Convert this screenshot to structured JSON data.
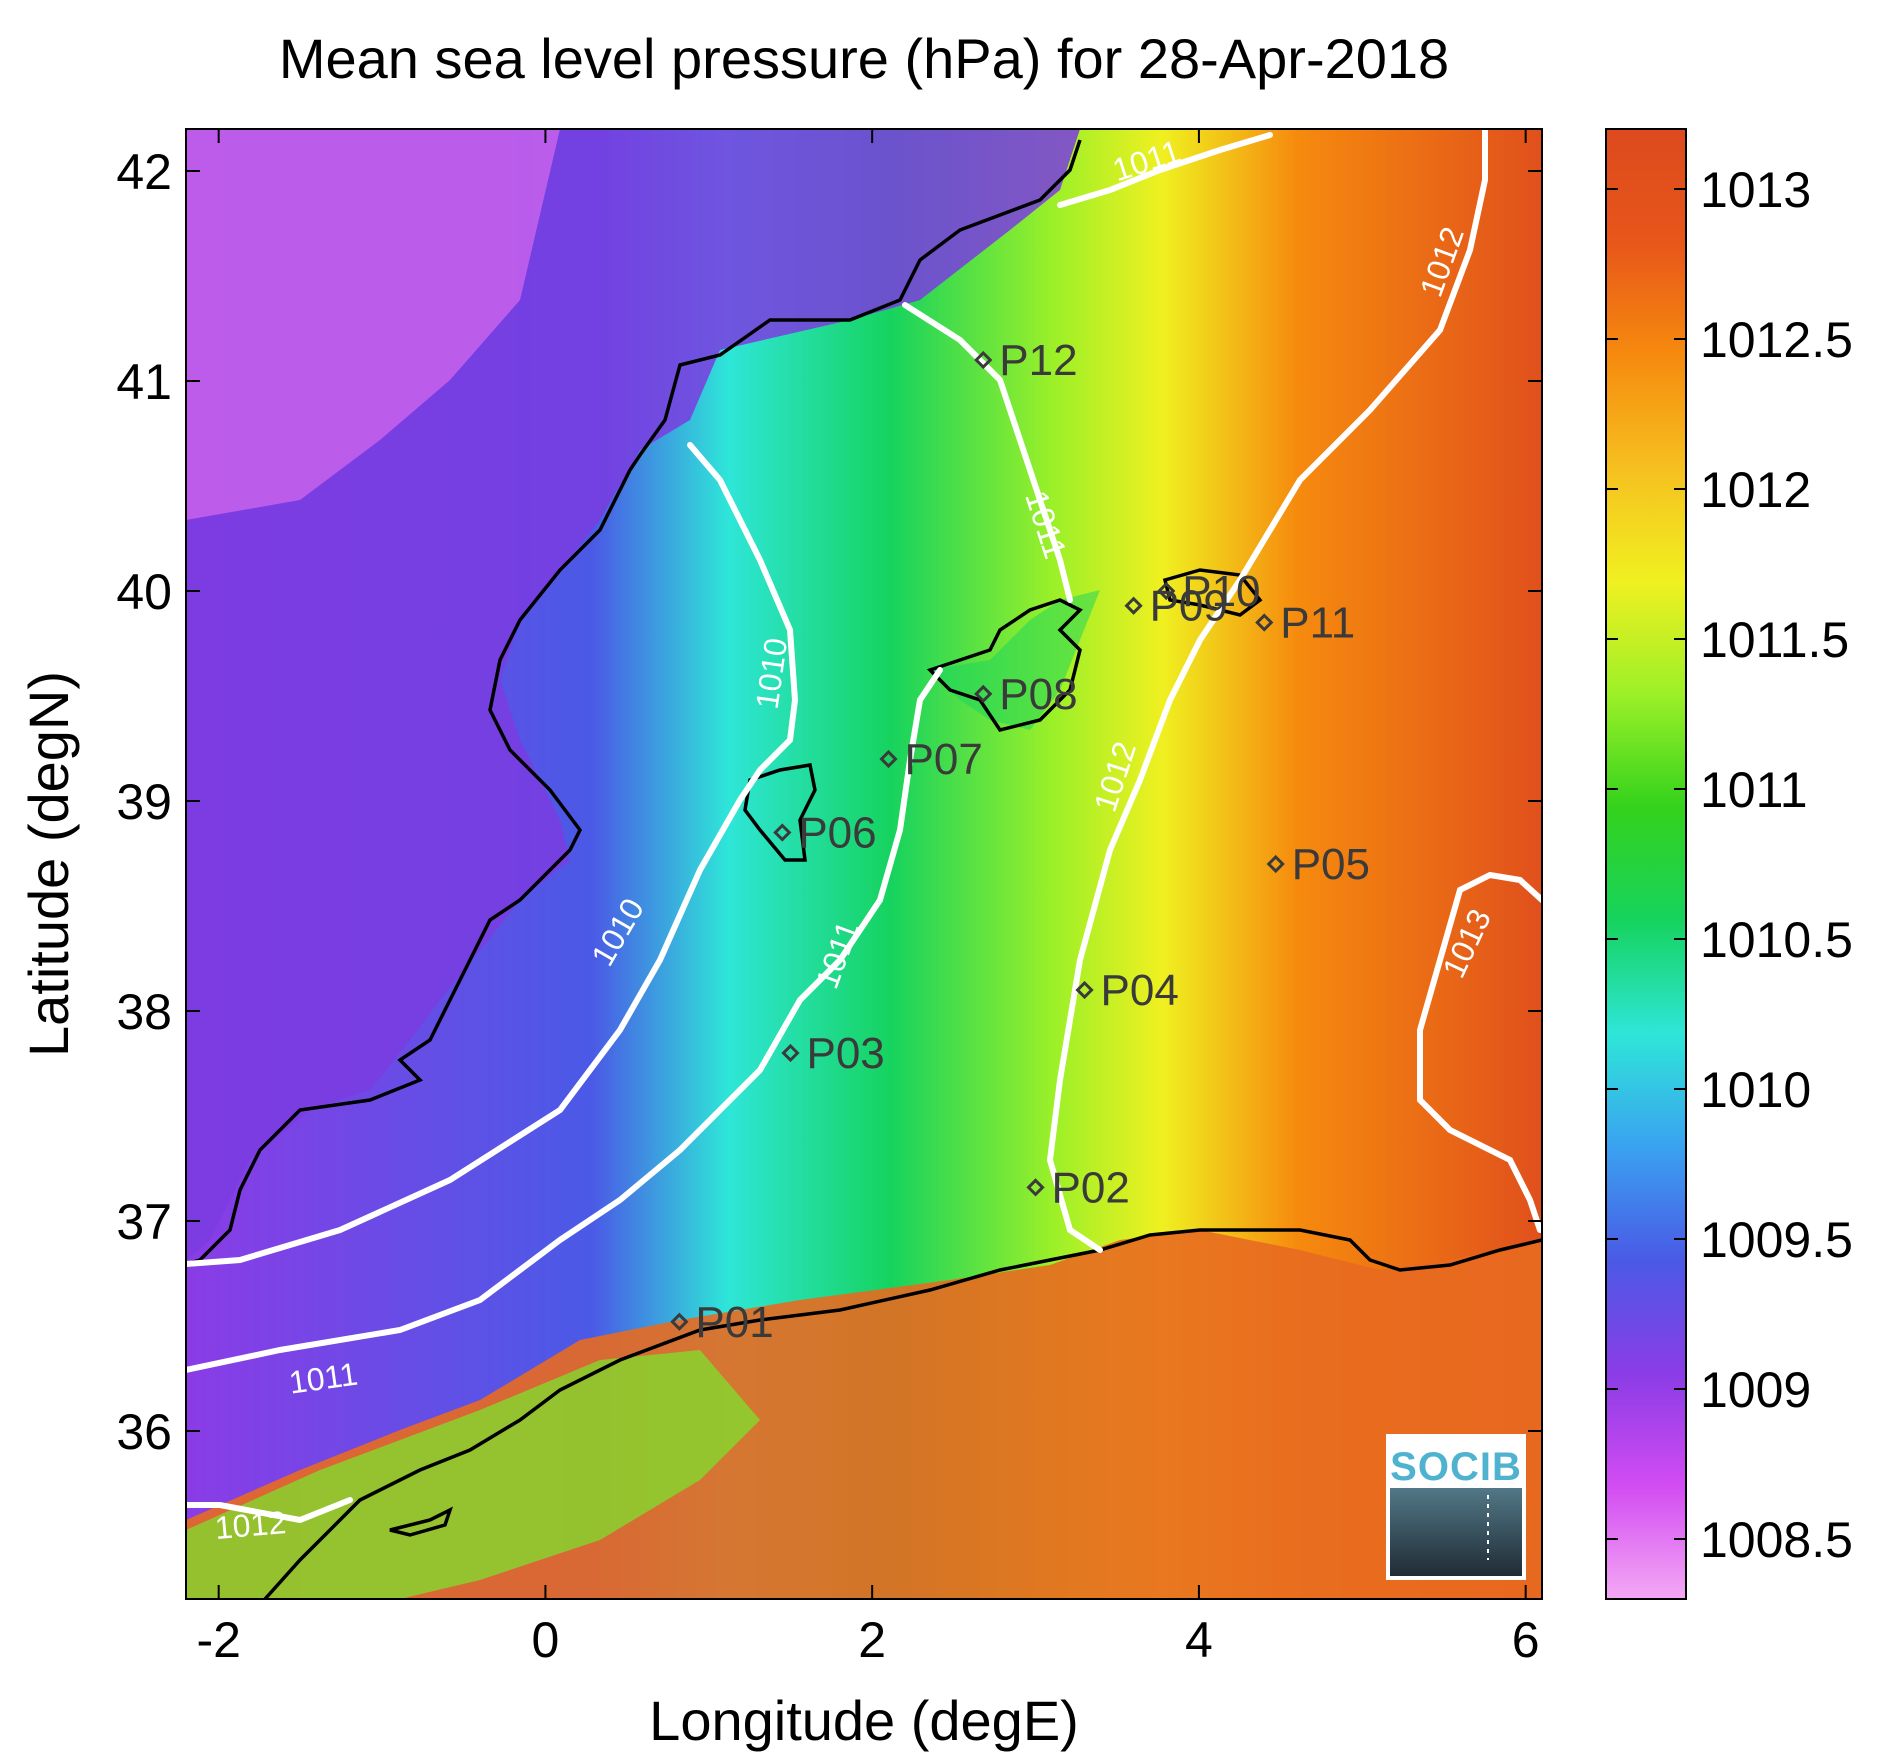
{
  "chart_data": {
    "type": "heatmap",
    "title": "Mean sea level pressure (hPa) for 28-Apr-2018",
    "xlabel": "Longitude (degE)",
    "ylabel": "Latitude (degN)",
    "xlim": [
      -2.2,
      6.1
    ],
    "ylim": [
      35.2,
      42.2
    ],
    "x_ticks": [
      -2,
      0,
      2,
      4,
      6
    ],
    "x_tick_labels": [
      "-2",
      "0",
      "2",
      "4",
      "6"
    ],
    "y_ticks": [
      36,
      37,
      38,
      39,
      40,
      41,
      42
    ],
    "y_tick_labels": [
      "36",
      "37",
      "38",
      "39",
      "40",
      "41",
      "42"
    ],
    "colorbar": {
      "range": [
        1008.3,
        1013.2
      ],
      "ticks": [
        1008.5,
        1009,
        1009.5,
        1010,
        1010.5,
        1011,
        1011.5,
        1012,
        1012.5,
        1013
      ],
      "tick_labels": [
        "1008.5",
        "1009",
        "1009.5",
        "1010",
        "1010.5",
        "1011",
        "1011.5",
        "1012",
        "1012.5",
        "1013"
      ],
      "colors": [
        "#f4a8f4",
        "#d24cf2",
        "#8a3ce6",
        "#4a5ae6",
        "#3aa2f0",
        "#2ee6d8",
        "#16d35e",
        "#34d21c",
        "#9cf028",
        "#f0f020",
        "#f6c020",
        "#f68a0e",
        "#e8561a",
        "#dc4a1e"
      ]
    },
    "contours": [
      {
        "level": 1010,
        "label": "1010"
      },
      {
        "level": 1011,
        "label": "1011"
      },
      {
        "level": 1012,
        "label": "1012"
      },
      {
        "level": 1013,
        "label": "1013"
      }
    ],
    "contour_labels": [
      {
        "text": "1011",
        "lon": 3.7,
        "lat": 42.0,
        "angle": -18
      },
      {
        "text": "1011",
        "lon": 3.0,
        "lat": 40.3,
        "angle": 72
      },
      {
        "text": "1010",
        "lon": 1.45,
        "lat": 39.6,
        "angle": -82
      },
      {
        "text": "1012",
        "lon": 5.55,
        "lat": 41.55,
        "angle": -70
      },
      {
        "text": "1012",
        "lon": 3.55,
        "lat": 39.1,
        "angle": -72
      },
      {
        "text": "1010",
        "lon": 0.5,
        "lat": 38.35,
        "angle": -60
      },
      {
        "text": "1011",
        "lon": 1.85,
        "lat": 38.25,
        "angle": -70
      },
      {
        "text": "1013",
        "lon": 5.7,
        "lat": 38.3,
        "angle": -65
      },
      {
        "text": "1011",
        "lon": -1.35,
        "lat": 36.2,
        "angle": -8
      },
      {
        "text": "1012",
        "lon": -1.8,
        "lat": 35.5,
        "angle": -5
      }
    ],
    "stations": [
      {
        "name": "P01",
        "lon": 0.82,
        "lat": 36.52
      },
      {
        "name": "P02",
        "lon": 3.0,
        "lat": 37.16
      },
      {
        "name": "P03",
        "lon": 1.5,
        "lat": 37.8
      },
      {
        "name": "P04",
        "lon": 3.3,
        "lat": 38.1
      },
      {
        "name": "P05",
        "lon": 4.47,
        "lat": 38.7
      },
      {
        "name": "P06",
        "lon": 1.45,
        "lat": 38.85
      },
      {
        "name": "P07",
        "lon": 2.1,
        "lat": 39.2
      },
      {
        "name": "P08",
        "lon": 2.68,
        "lat": 39.51
      },
      {
        "name": "P09",
        "lon": 3.6,
        "lat": 39.93
      },
      {
        "name": "P10",
        "lon": 3.8,
        "lat": 40.0
      },
      {
        "name": "P11",
        "lon": 4.4,
        "lat": 39.85
      },
      {
        "name": "P12",
        "lon": 2.68,
        "lat": 41.1
      }
    ],
    "grid": false,
    "legend": "colorbar right",
    "logo": "SOCIB"
  }
}
